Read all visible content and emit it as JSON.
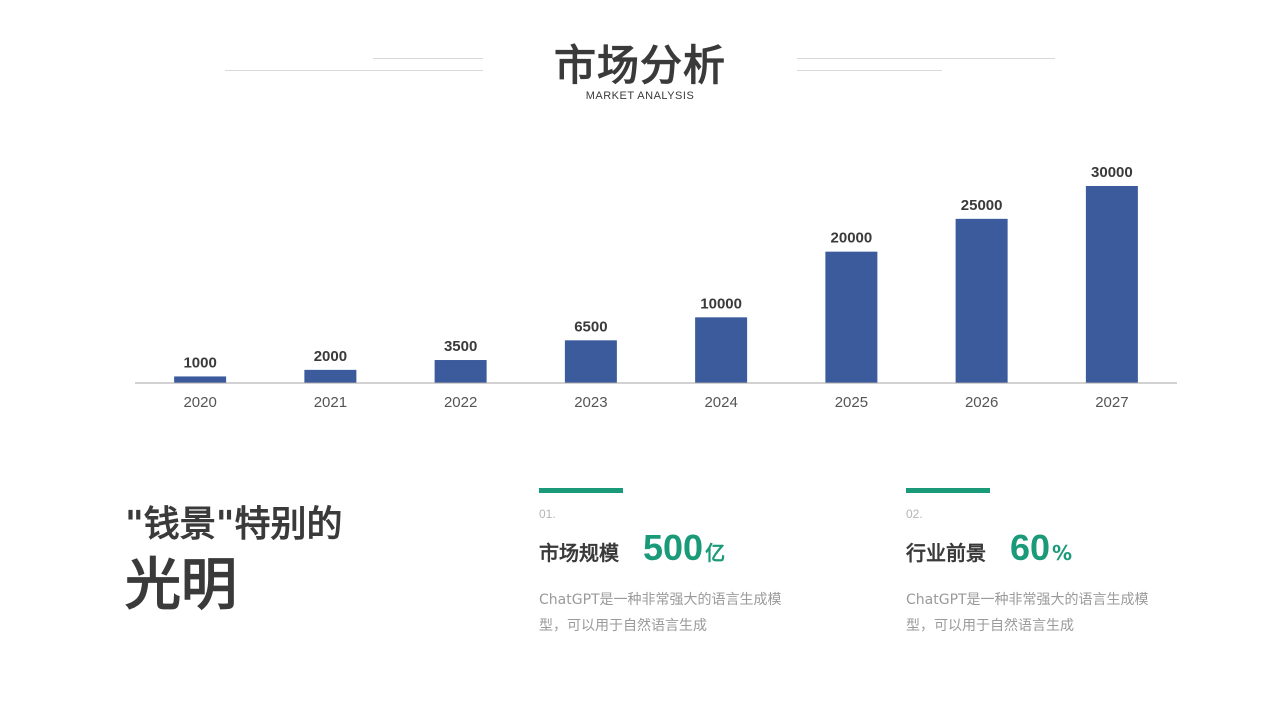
{
  "header": {
    "title": "市场分析",
    "subtitle": "MARKET ANALYSIS"
  },
  "chart_data": {
    "type": "bar",
    "categories": [
      "2020",
      "2021",
      "2022",
      "2023",
      "2024",
      "2025",
      "2026",
      "2027"
    ],
    "values": [
      1000,
      2000,
      3500,
      6500,
      10000,
      20000,
      25000,
      30000
    ],
    "ylim": [
      0,
      30000
    ],
    "bar_color": "#3b5b9d",
    "grid": false,
    "data_labels": true
  },
  "tagline": {
    "line1": "\"钱景\"特别的",
    "line2": "光明"
  },
  "stats": [
    {
      "number": "01.",
      "label": "市场规模",
      "value": "500",
      "unit": "亿",
      "description": "ChatGPT是一种非常强大的语言生成模型，可以用于自然语言生成"
    },
    {
      "number": "02.",
      "label": "行业前景",
      "value": "60",
      "unit": "%",
      "description": "ChatGPT是一种非常强大的语言生成模型，可以用于自然语言生成"
    }
  ],
  "colors": {
    "accent": "#1a9a78",
    "bar": "#3b5b9d",
    "text": "#3a3a3a",
    "muted": "#9a9a9a"
  }
}
